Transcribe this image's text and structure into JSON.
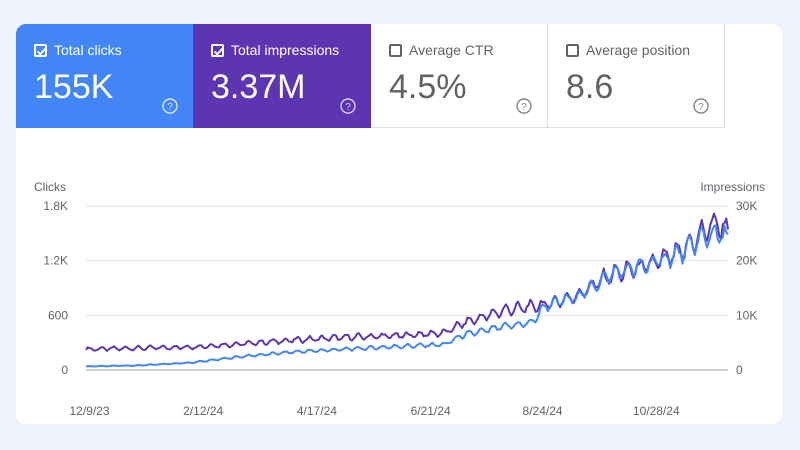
{
  "metrics": [
    {
      "label": "Total clicks",
      "value": "155K",
      "checked": true
    },
    {
      "label": "Total impressions",
      "value": "3.37M",
      "checked": true
    },
    {
      "label": "Average CTR",
      "value": "4.5%",
      "checked": false
    },
    {
      "label": "Average position",
      "value": "8.6",
      "checked": false
    }
  ],
  "colors": {
    "clicks": "#4285f4",
    "impressions": "#5e35b1",
    "grid": "#e3e3e3",
    "text": "#5f6368"
  },
  "chart_data": {
    "type": "line",
    "title": "",
    "left_axis_label": "Clicks",
    "right_axis_label": "Impressions",
    "left_ylim": [
      0,
      1800
    ],
    "right_ylim": [
      0,
      30000
    ],
    "left_ticks": [
      "0",
      "600",
      "1.2K",
      "1.8K"
    ],
    "left_tick_values": [
      0,
      600,
      1200,
      1800
    ],
    "right_ticks": [
      "0",
      "10K",
      "20K",
      "30K"
    ],
    "right_tick_values": [
      0,
      10000,
      20000,
      30000
    ],
    "x_ticks": [
      "12/9/23",
      "2/12/24",
      "4/17/24",
      "6/21/24",
      "8/24/24",
      "10/28/24"
    ],
    "x_tick_days": [
      2,
      67,
      132,
      197,
      261,
      326
    ],
    "x_range_days": [
      0,
      367
    ],
    "series": [
      {
        "name": "Impressions",
        "axis": "right",
        "color": "#5e35b1",
        "anchors": [
          [
            0,
            3800
          ],
          [
            30,
            4000
          ],
          [
            60,
            4200
          ],
          [
            90,
            4800
          ],
          [
            120,
            5500
          ],
          [
            150,
            6000
          ],
          [
            180,
            6300
          ],
          [
            205,
            6800
          ],
          [
            215,
            8500
          ],
          [
            225,
            9500
          ],
          [
            240,
            11000
          ],
          [
            260,
            11800
          ],
          [
            280,
            13500
          ],
          [
            300,
            17500
          ],
          [
            320,
            19000
          ],
          [
            340,
            21500
          ],
          [
            352,
            25000
          ],
          [
            360,
            27000
          ],
          [
            367,
            25500
          ]
        ],
        "weekly_amplitude": 0.08
      },
      {
        "name": "Clicks",
        "axis": "left",
        "color": "#4285f4",
        "anchors": [
          [
            0,
            40
          ],
          [
            30,
            50
          ],
          [
            60,
            80
          ],
          [
            90,
            150
          ],
          [
            120,
            200
          ],
          [
            150,
            230
          ],
          [
            180,
            260
          ],
          [
            205,
            280
          ],
          [
            215,
            380
          ],
          [
            225,
            420
          ],
          [
            240,
            480
          ],
          [
            255,
            520
          ],
          [
            262,
            700
          ],
          [
            280,
            800
          ],
          [
            300,
            1050
          ],
          [
            320,
            1150
          ],
          [
            340,
            1280
          ],
          [
            352,
            1450
          ],
          [
            360,
            1500
          ],
          [
            367,
            1450
          ]
        ],
        "weekly_amplitude": 0.07
      }
    ]
  }
}
